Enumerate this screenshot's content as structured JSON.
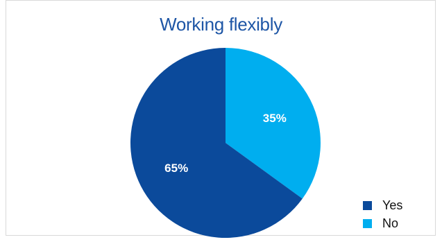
{
  "chart_data": {
    "type": "pie",
    "title": "Working flexibly",
    "slices": [
      {
        "label": "Yes",
        "value": 65,
        "display": "65%",
        "color": "#0b4a9b"
      },
      {
        "label": "No",
        "value": 35,
        "display": "35%",
        "color": "#00aeef"
      }
    ],
    "legend_position": "bottom-right",
    "legend": [
      "Yes",
      "No"
    ]
  }
}
